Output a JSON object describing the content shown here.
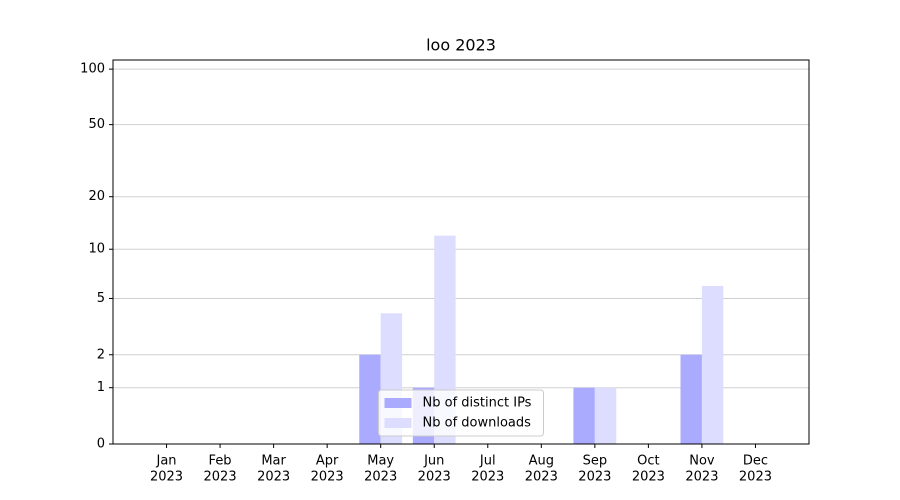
{
  "chart_data": {
    "type": "bar",
    "title": "loo 2023",
    "categories": [
      [
        "Jan",
        "2023"
      ],
      [
        "Feb",
        "2023"
      ],
      [
        "Mar",
        "2023"
      ],
      [
        "Apr",
        "2023"
      ],
      [
        "May",
        "2023"
      ],
      [
        "Jun",
        "2023"
      ],
      [
        "Jul",
        "2023"
      ],
      [
        "Aug",
        "2023"
      ],
      [
        "Sep",
        "2023"
      ],
      [
        "Oct",
        "2023"
      ],
      [
        "Nov",
        "2023"
      ],
      [
        "Dec",
        "2023"
      ]
    ],
    "series": [
      {
        "name": "Nb of distinct IPs",
        "color": "#aaaaff",
        "values": [
          0,
          0,
          0,
          0,
          2,
          1,
          0,
          0,
          1,
          0,
          2,
          0
        ]
      },
      {
        "name": "Nb of downloads",
        "color": "#ddddff",
        "values": [
          0,
          0,
          0,
          0,
          4,
          12,
          0,
          0,
          1,
          0,
          6,
          0
        ]
      }
    ],
    "y_scale": "log1p",
    "ylim": [
      0,
      112
    ],
    "yticks": [
      0,
      1,
      2,
      5,
      10,
      20,
      50,
      100
    ],
    "grid": true,
    "legend": "lower center"
  }
}
